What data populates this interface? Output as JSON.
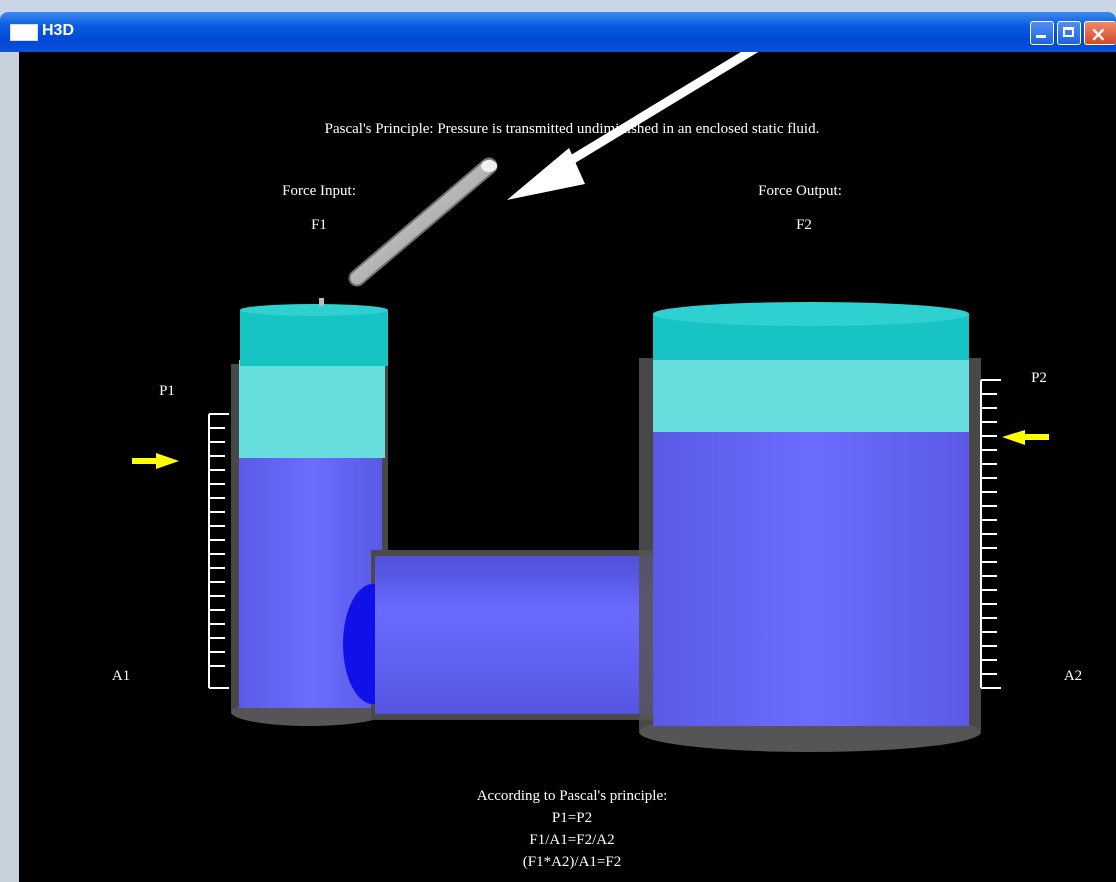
{
  "window": {
    "title": "H3D"
  },
  "scene": {
    "principle_text": "Pascal's Principle: Pressure is transmitted undiminished in an enclosed static fluid.",
    "force_input_label": "Force Input:",
    "force_input_symbol": "F1",
    "force_output_label": "Force Output:",
    "force_output_symbol": "F2",
    "pressure_left": "P1",
    "pressure_right": "P2",
    "area_left": "A1",
    "area_right": "A2",
    "explanation": {
      "heading": "According to Pascal's principle:",
      "line1": "P1=P2",
      "line2": "F1/A1=F2/A2",
      "line3": "(F1*A2)/A1=F2"
    }
  },
  "colors": {
    "fluid": "#6666ff",
    "piston": "#00c8c8",
    "indicator_arrow": "#ffff00",
    "pointer_arrow": "#ffffff"
  }
}
